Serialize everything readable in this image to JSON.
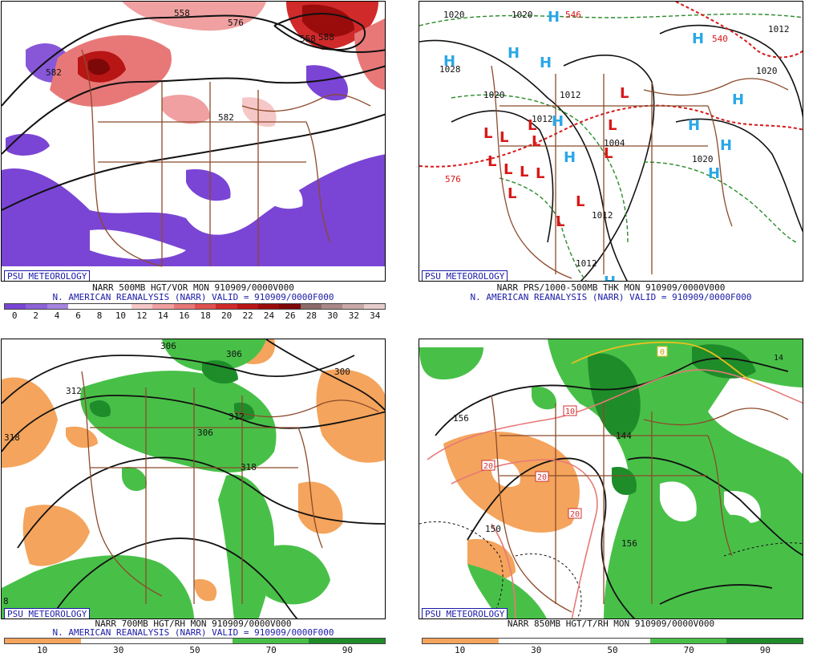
{
  "panels": [
    {
      "id": "p500",
      "title_line1": "NARR 500MB HGT/VOR MON 910909/0000V000",
      "title_line2": "N. AMERICAN REANALYSIS (NARR) VALID = 910909/0000F000",
      "logo": "PSU METEOROLOGY",
      "contour_labels": [
        "558",
        "576",
        "558",
        "582",
        "582",
        "588"
      ],
      "colorbar": {
        "ticks": [
          "0",
          "2",
          "4",
          "6",
          "8",
          "10",
          "12",
          "14",
          "16",
          "18",
          "20",
          "22",
          "24",
          "26",
          "28",
          "30",
          "32",
          "34"
        ],
        "colors": [
          "#7a45d4",
          "#8e62d8",
          "#a584df",
          "#fff",
          "#fff",
          "#fff",
          "#f6c7c7",
          "#f0a0a0",
          "#e87878",
          "#df5050",
          "#d02a2a",
          "#b81515",
          "#9a0c0c",
          "#7c0808",
          "#8a6a6a",
          "#aa8888",
          "#c8a8a8",
          "#e7cccc"
        ]
      }
    },
    {
      "id": "pmsl",
      "title_line1": "NARR PRS/1000-500MB THK MON 910909/0000V000",
      "title_line2": "N. AMERICAN REANALYSIS (NARR) VALID = 910909/0000F000",
      "logo": "PSU METEOROLOGY",
      "contour_labels": [
        "1020",
        "1020",
        "1028",
        "1020",
        "1012",
        "1012",
        "1004",
        "1012",
        "1012",
        "1020",
        "1020",
        "1012",
        "576",
        "540",
        "546"
      ]
    },
    {
      "id": "p700",
      "title_line1": "NARR 700MB HGT/RH MON 910909/0000V000",
      "title_line2": "N. AMERICAN REANALYSIS (NARR) VALID = 910909/0000F000",
      "logo": "PSU METEOROLOGY",
      "contour_labels": [
        "312",
        "318",
        "306",
        "312",
        "306",
        "300",
        "318",
        "306",
        "8"
      ],
      "colorbar": {
        "ticks": [
          "10",
          "30",
          "50",
          "70",
          "90"
        ],
        "colors": [
          "#f4a45c",
          "#fff",
          "#fff",
          "#48c048",
          "#1f8c2a"
        ]
      }
    },
    {
      "id": "p850",
      "title_line1": "NARR 850MB HGT/T/RH MON 910909/0000V000",
      "logo": "PSU METEOROLOGY",
      "contour_labels": [
        "156",
        "144",
        "150",
        "156",
        "0",
        "10",
        "20",
        "20",
        "20",
        "14"
      ],
      "colorbar": {
        "ticks": [
          "10",
          "30",
          "50",
          "70",
          "90"
        ],
        "colors": [
          "#f4a45c",
          "#fff",
          "#fff",
          "#48c048",
          "#1f8c2a"
        ]
      }
    }
  ]
}
